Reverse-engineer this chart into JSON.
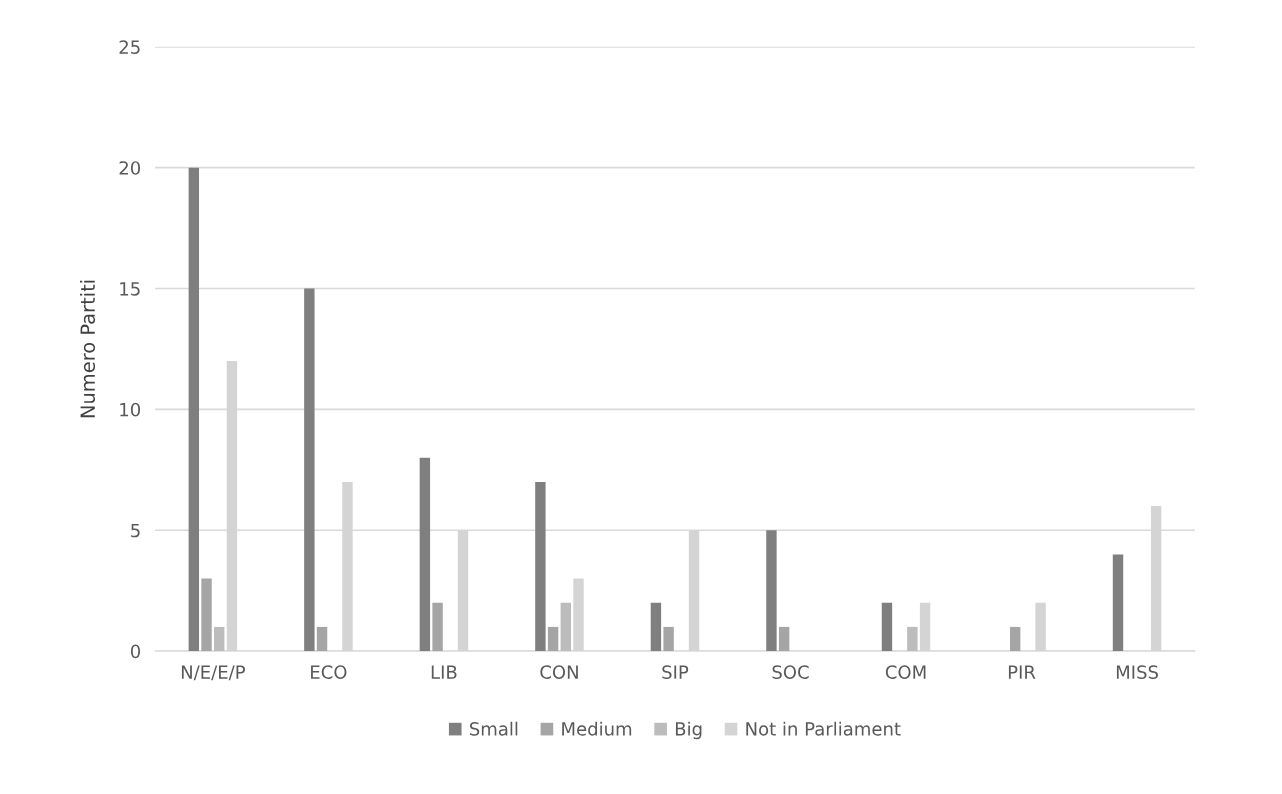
{
  "chart_data": {
    "type": "bar",
    "ylabel": "Numero Partiti",
    "categories": [
      "N/E/E/P",
      "ECO",
      "LIB",
      "CON",
      "SIP",
      "SOC",
      "COM",
      "PIR",
      "MISS"
    ],
    "series": [
      {
        "name": "Small",
        "color": "#7f7f7f",
        "values": [
          20,
          15,
          8,
          7,
          2,
          5,
          2,
          0,
          4
        ]
      },
      {
        "name": "Medium",
        "color": "#a5a5a5",
        "values": [
          3,
          1,
          2,
          1,
          1,
          1,
          0,
          1,
          0
        ]
      },
      {
        "name": "Big",
        "color": "#bcbcbc",
        "values": [
          1,
          0,
          0,
          2,
          0,
          0,
          1,
          0,
          0
        ]
      },
      {
        "name": "Not in Parliament",
        "color": "#d4d4d4",
        "values": [
          12,
          7,
          5,
          3,
          5,
          0,
          2,
          2,
          6
        ]
      }
    ],
    "ylim": [
      0,
      25
    ],
    "yticks": [
      0,
      5,
      10,
      15,
      20,
      25
    ],
    "grid": "y",
    "legend": "bottom"
  }
}
